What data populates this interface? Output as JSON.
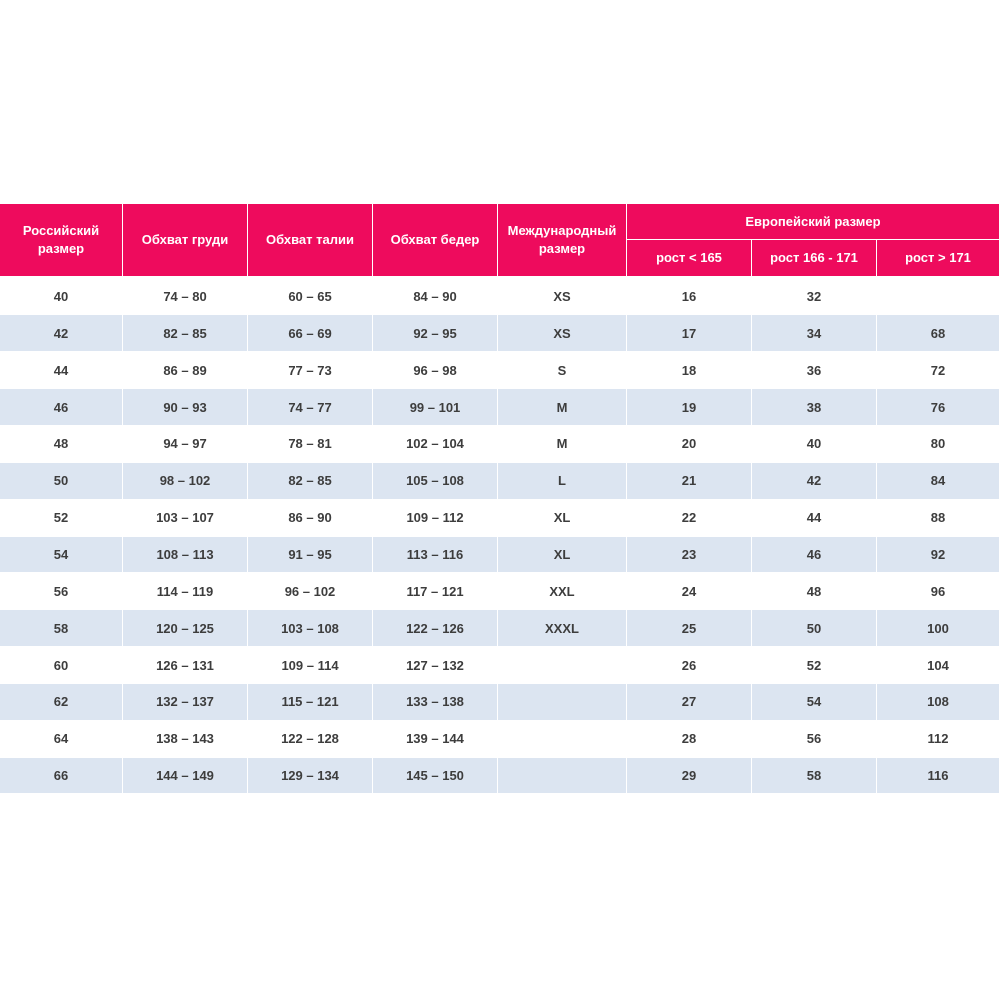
{
  "table": {
    "headers": [
      "Российский размер",
      "Обхват груди",
      "Обхват талии",
      "Обхват бедер",
      "Международный размер",
      "Европейский размер"
    ],
    "subheaders": [
      "рост < 165",
      "рост 166 - 171",
      "рост > 171"
    ],
    "rows": [
      [
        "40",
        "74 – 80",
        "60 – 65",
        "84 – 90",
        "XS",
        "16",
        "32",
        null
      ],
      [
        "42",
        "82 – 85",
        "66 – 69",
        "92 – 95",
        "XS",
        "17",
        "34",
        "68"
      ],
      [
        "44",
        "86 – 89",
        "77 – 73",
        "96 – 98",
        "S",
        "18",
        "36",
        "72"
      ],
      [
        "46",
        "90 – 93",
        "74 – 77",
        "99 – 101",
        "M",
        "19",
        "38",
        "76"
      ],
      [
        "48",
        "94 – 97",
        "78 – 81",
        "102 – 104",
        "M",
        "20",
        "40",
        "80"
      ],
      [
        "50",
        "98 – 102",
        "82 – 85",
        "105 – 108",
        "L",
        "21",
        "42",
        "84"
      ],
      [
        "52",
        "103 – 107",
        "86 – 90",
        "109 – 112",
        "XL",
        "22",
        "44",
        "88"
      ],
      [
        "54",
        "108 – 113",
        "91 – 95",
        "113 – 116",
        "XL",
        "23",
        "46",
        "92"
      ],
      [
        "56",
        "114 – 119",
        "96 – 102",
        "117 – 121",
        "XXL",
        "24",
        "48",
        "96"
      ],
      [
        "58",
        "120 – 125",
        "103 – 108",
        "122 – 126",
        "XXXL",
        "25",
        "50",
        "100"
      ],
      [
        "60",
        "126 – 131",
        "109 – 114",
        "127 – 132",
        null,
        "26",
        "52",
        "104"
      ],
      [
        "62",
        "132 – 137",
        "115 – 121",
        "133 – 138",
        null,
        "27",
        "54",
        "108"
      ],
      [
        "64",
        "138 – 143",
        "122 – 128",
        "139 – 144",
        null,
        "28",
        "56",
        "112"
      ],
      [
        "66",
        "144 – 149",
        "129 – 134",
        "145 – 150",
        null,
        "29",
        "58",
        "116"
      ]
    ]
  }
}
